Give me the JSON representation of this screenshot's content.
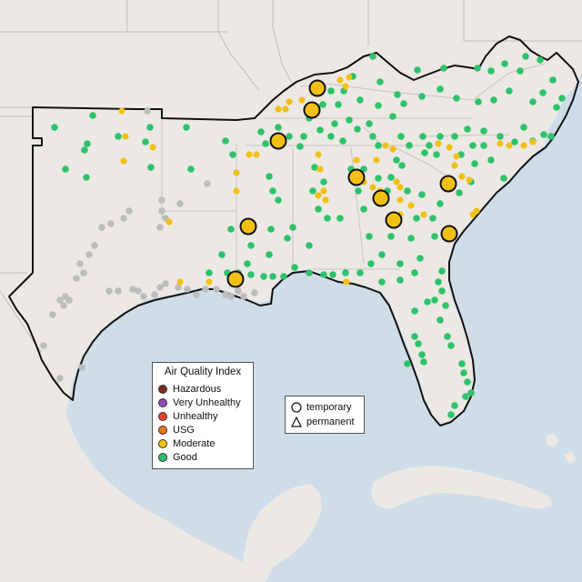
{
  "legend": {
    "title": "Air Quality Index",
    "items": [
      {
        "label": "Hazardous",
        "color": "#7e2d24"
      },
      {
        "label": "Very Unhealthy",
        "color": "#8e4cb3"
      },
      {
        "label": "Unhealthy",
        "color": "#e4412e"
      },
      {
        "label": "USG",
        "color": "#e3761e"
      },
      {
        "label": "Moderate",
        "color": "#f2c013"
      },
      {
        "label": "Good",
        "color": "#2ec26a"
      }
    ]
  },
  "site_types": {
    "temporary": "temporary",
    "permanent": "permanent"
  },
  "colors": {
    "water": "#cfdde9",
    "land": "#ece9e5",
    "border": "#111111",
    "inactive": "#bcbcbc"
  }
}
